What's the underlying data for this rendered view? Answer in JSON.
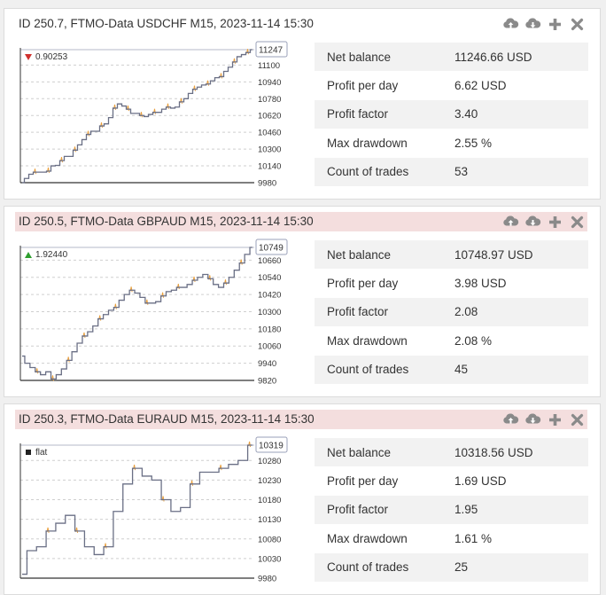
{
  "colors": {
    "equity": "#6a6f85",
    "spike": "#e8a040",
    "up": "#2e9e2e",
    "down": "#d0312d",
    "flat": "#222222"
  },
  "icons": [
    "cloud-upload-icon",
    "cloud-download-icon",
    "plus-icon",
    "close-icon"
  ],
  "panels": [
    {
      "title": "ID 250.7, FTMO-Data USDCHF M15, 2023-11-14 15:30",
      "alert": false,
      "price": {
        "direction": "down",
        "value": "0.90253"
      },
      "last_value": "11247",
      "chart_data": {
        "type": "line",
        "ylim": [
          9980,
          11247
        ],
        "y_ticks": [
          "11100",
          "10940",
          "10780",
          "10620",
          "10460",
          "10300",
          "10140",
          "9980"
        ],
        "y_tick_values": [
          11100,
          10940,
          10780,
          10620,
          10460,
          10300,
          10140,
          9980
        ],
        "values": [
          9980,
          10020,
          10060,
          10080,
          10080,
          10080,
          10090,
          10140,
          10145,
          10190,
          10230,
          10230,
          10290,
          10340,
          10390,
          10440,
          10470,
          10470,
          10520,
          10540,
          10600,
          10690,
          10730,
          10710,
          10680,
          10640,
          10640,
          10620,
          10610,
          10630,
          10650,
          10650,
          10680,
          10700,
          10690,
          10700,
          10750,
          10780,
          10830,
          10870,
          10890,
          10910,
          10920,
          10950,
          10980,
          10990,
          11040,
          11080,
          11130,
          11180,
          11200,
          11220,
          11247
        ]
      },
      "stats": [
        {
          "label": "Net balance",
          "value": "11246.66 USD"
        },
        {
          "label": "Profit per day",
          "value": "6.62 USD"
        },
        {
          "label": "Profit factor",
          "value": "3.40"
        },
        {
          "label": "Max drawdown",
          "value": "2.55 %"
        },
        {
          "label": "Count of trades",
          "value": "53"
        }
      ]
    },
    {
      "title": "ID 250.5, FTMO-Data GBPAUD M15, 2023-11-14 15:30",
      "alert": true,
      "price": {
        "direction": "up",
        "value": "1.92440"
      },
      "last_value": "10749",
      "chart_data": {
        "type": "line",
        "ylim": [
          9820,
          10749
        ],
        "y_ticks": [
          "10660",
          "10540",
          "10420",
          "10300",
          "10180",
          "10060",
          "9940",
          "9820"
        ],
        "y_tick_values": [
          10660,
          10540,
          10420,
          10300,
          10180,
          10060,
          9940,
          9820
        ],
        "values": [
          9990,
          9940,
          9910,
          9880,
          9860,
          9880,
          9830,
          9860,
          9900,
          9960,
          10020,
          10080,
          10130,
          10160,
          10200,
          10250,
          10280,
          10310,
          10330,
          10380,
          10420,
          10450,
          10430,
          10400,
          10360,
          10360,
          10370,
          10410,
          10440,
          10450,
          10470,
          10470,
          10490,
          10520,
          10540,
          10560,
          10530,
          10490,
          10470,
          10500,
          10540,
          10590,
          10640,
          10700,
          10749
        ]
      },
      "stats": [
        {
          "label": "Net balance",
          "value": "10748.97 USD"
        },
        {
          "label": "Profit per day",
          "value": "3.98 USD"
        },
        {
          "label": "Profit factor",
          "value": "2.08"
        },
        {
          "label": "Max drawdown",
          "value": "2.08 %"
        },
        {
          "label": "Count of trades",
          "value": "45"
        }
      ]
    },
    {
      "title": "ID 250.3, FTMO-Data EURAUD M15, 2023-11-14 15:30",
      "alert": true,
      "price": {
        "direction": "flat",
        "value": "flat"
      },
      "last_value": "10319",
      "chart_data": {
        "type": "line",
        "ylim": [
          9980,
          10319
        ],
        "y_ticks": [
          "10280",
          "10230",
          "10180",
          "10130",
          "10080",
          "10030",
          "9980"
        ],
        "y_tick_values": [
          10280,
          10230,
          10180,
          10130,
          10080,
          10030,
          9980
        ],
        "values": [
          9990,
          10050,
          10060,
          10100,
          10120,
          10140,
          10100,
          10060,
          10040,
          10060,
          10150,
          10220,
          10260,
          10240,
          10230,
          10180,
          10150,
          10160,
          10220,
          10250,
          10250,
          10260,
          10270,
          10280,
          10319
        ]
      },
      "stats": [
        {
          "label": "Net balance",
          "value": "10318.56 USD"
        },
        {
          "label": "Profit per day",
          "value": "1.69 USD"
        },
        {
          "label": "Profit factor",
          "value": "1.95"
        },
        {
          "label": "Max drawdown",
          "value": "1.61 %"
        },
        {
          "label": "Count of trades",
          "value": "25"
        }
      ]
    }
  ]
}
